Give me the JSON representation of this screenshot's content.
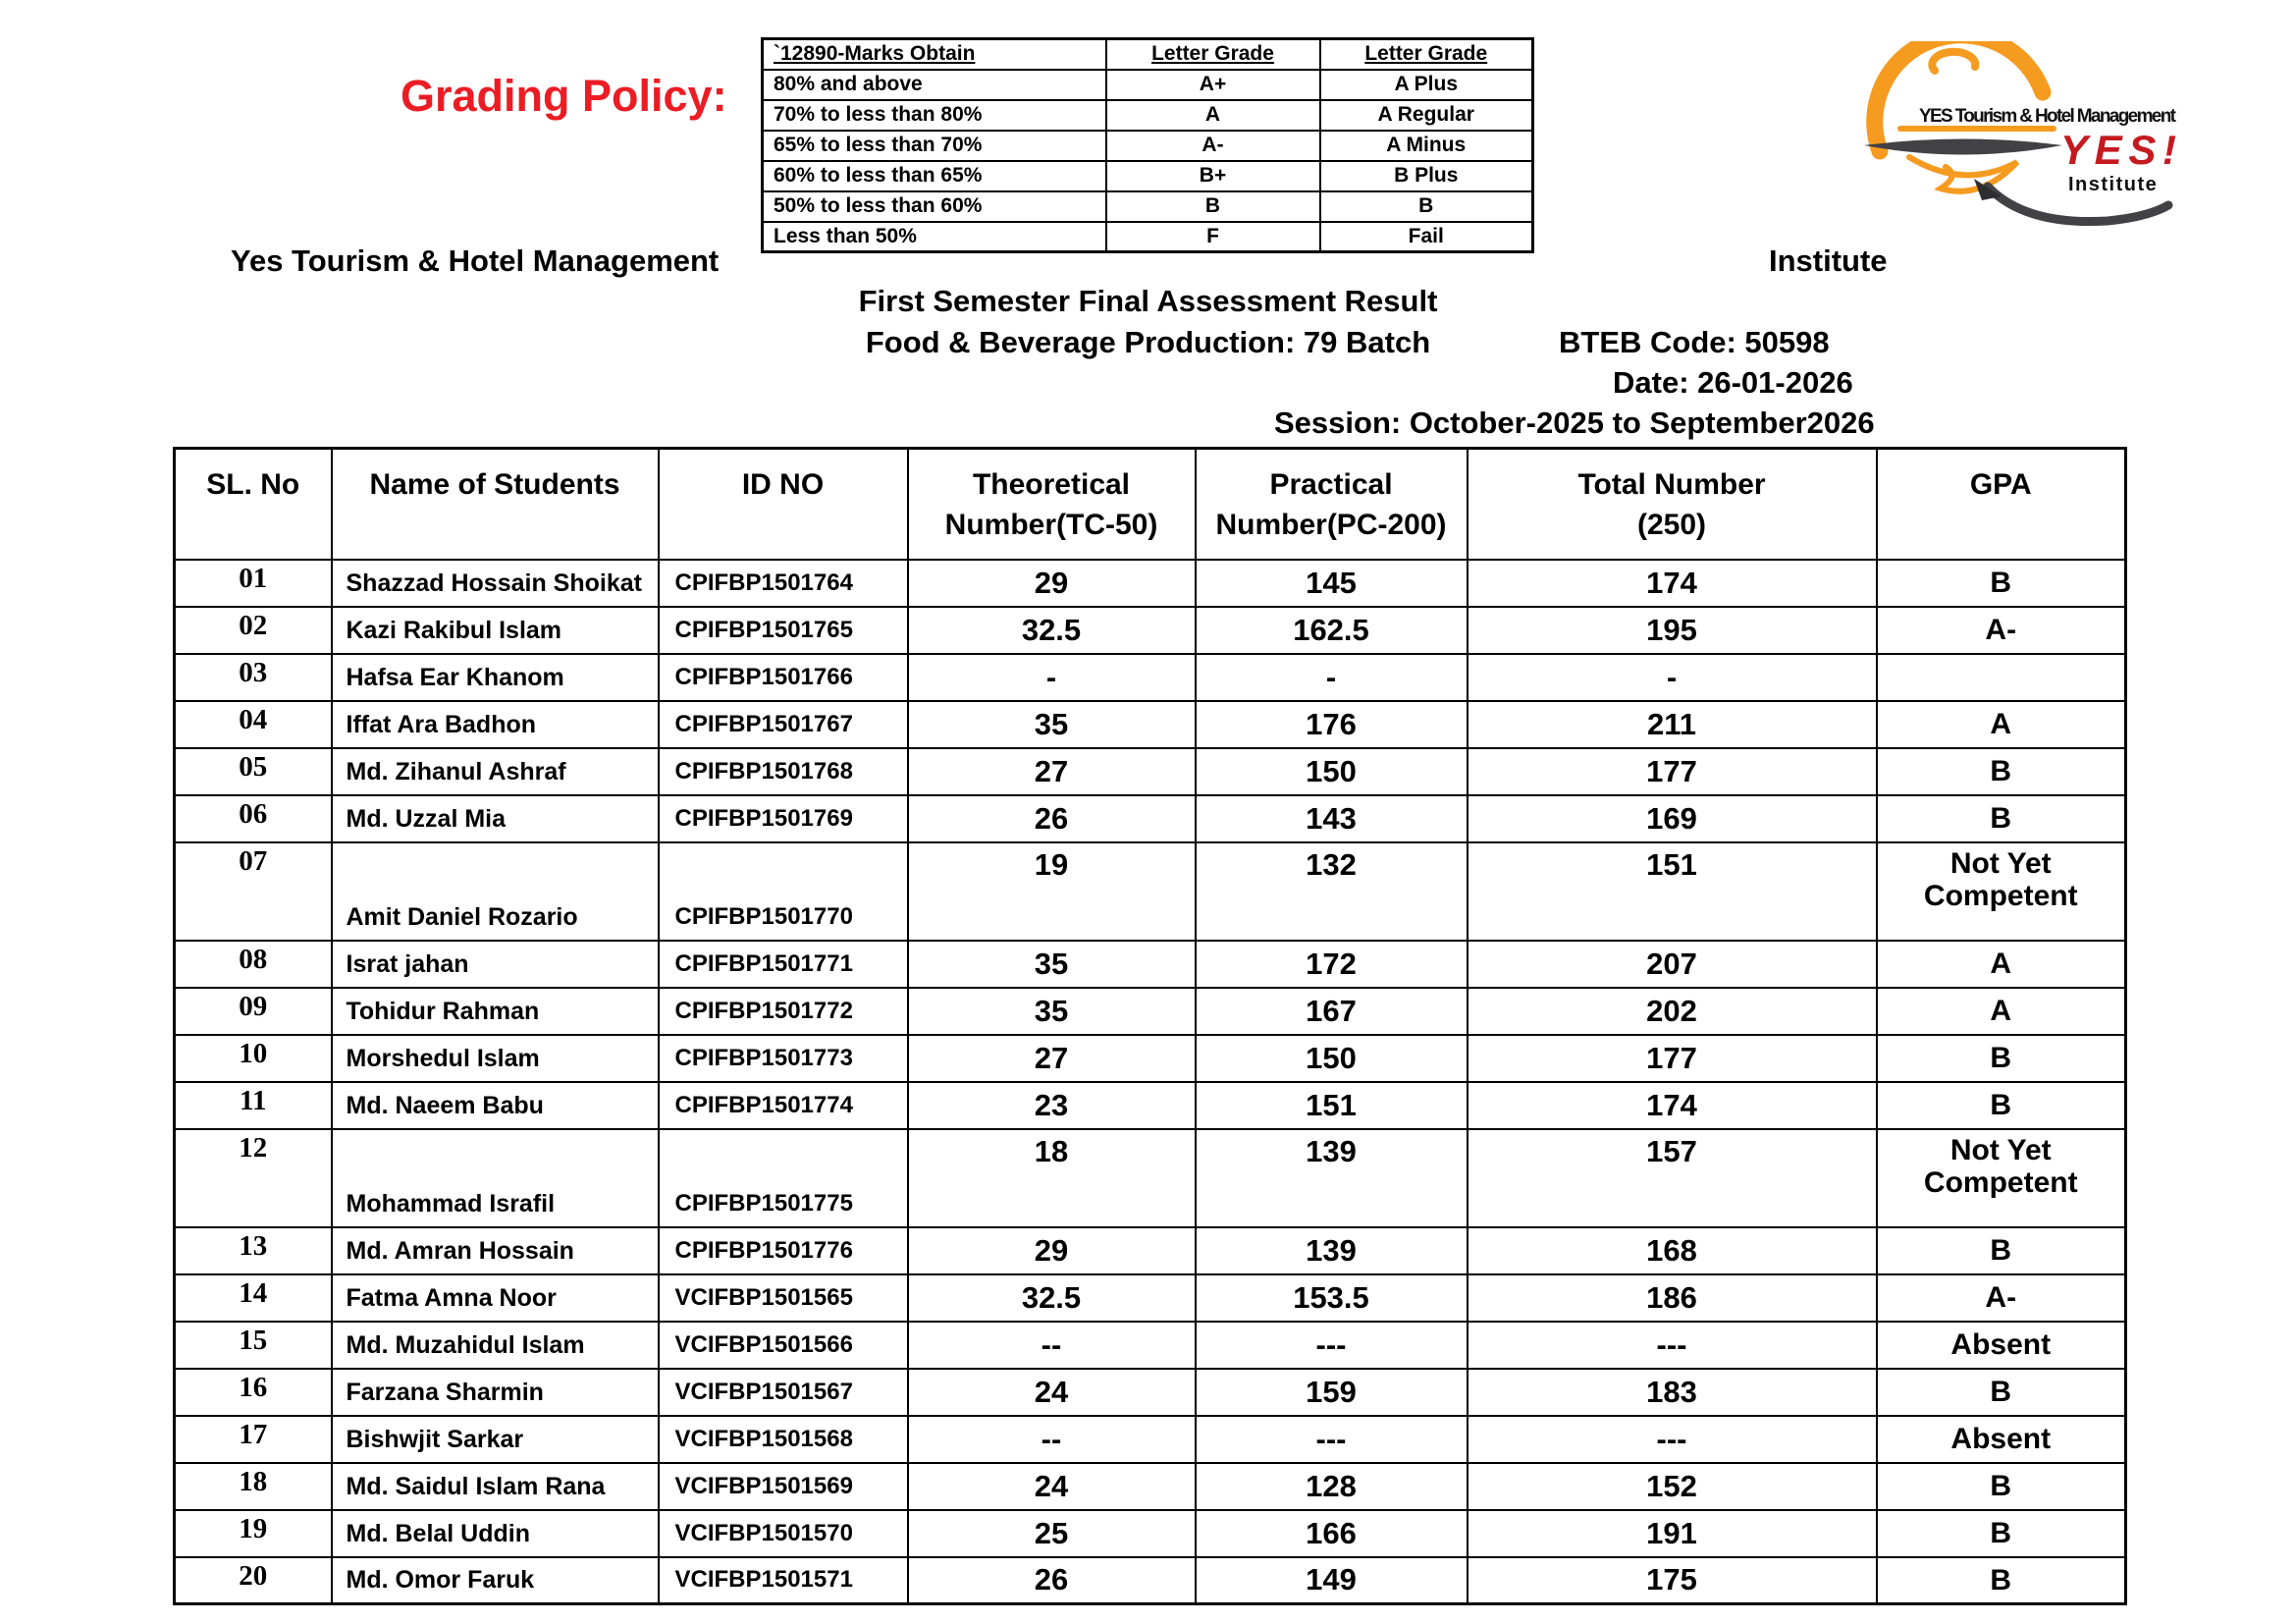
{
  "grading_policy": {
    "label": "Grading Policy:",
    "table": {
      "headers": [
        "`12890-Marks Obtain",
        "Letter Grade",
        "Letter Grade"
      ],
      "rows": [
        [
          "80% and above",
          "A+",
          "A Plus"
        ],
        [
          "70% to less than 80%",
          "A",
          "A Regular"
        ],
        [
          "65% to less than 70%",
          "A-",
          "A Minus"
        ],
        [
          "60% to less than 65%",
          "B+",
          "B Plus"
        ],
        [
          "50% to less than 60%",
          "B",
          "B"
        ],
        [
          "Less than 50%",
          "F",
          "Fail"
        ]
      ]
    }
  },
  "logo": {
    "brand_line": "YES Tourism & Hotel Management",
    "brand_word": "YES!",
    "brand_sub": "Institute",
    "colors": {
      "orange": "#F59B20",
      "red": "#C41A20",
      "dark": "#424246"
    }
  },
  "header": {
    "org_left": "Yes Tourism & Hotel Management",
    "org_right": "Institute",
    "title_line1": "First Semester Final Assessment Result",
    "title_line2": "Food & Beverage Production: 79 Batch",
    "bteb_code": "BTEB Code: 50598",
    "date": "Date: 26-01-2026",
    "session": "Session: October-2025 to September2026"
  },
  "results_table": {
    "headers": [
      "SL. No",
      "Name of Students",
      "ID NO",
      "Theoretical\nNumber(TC-50)",
      "Practical\nNumber(PC-200)",
      "Total Number\n(250)",
      "GPA"
    ],
    "rows": [
      {
        "sl": "01",
        "name": "Shazzad Hossain Shoikat",
        "id": "CPIFBP1501764",
        "theoretical": "29",
        "practical": "145",
        "total": "174",
        "gpa": "B",
        "tall": false
      },
      {
        "sl": "02",
        "name": "Kazi Rakibul Islam",
        "id": "CPIFBP1501765",
        "theoretical": "32.5",
        "practical": "162.5",
        "total": "195",
        "gpa": "A-",
        "tall": false
      },
      {
        "sl": "03",
        "name": "Hafsa Ear Khanom",
        "id": "CPIFBP1501766",
        "theoretical": "-",
        "practical": "-",
        "total": "-",
        "gpa": "",
        "tall": false
      },
      {
        "sl": "04",
        "name": "Iffat Ara Badhon",
        "id": "CPIFBP1501767",
        "theoretical": "35",
        "practical": "176",
        "total": "211",
        "gpa": "A",
        "tall": false
      },
      {
        "sl": "05",
        "name": "Md. Zihanul Ashraf",
        "id": "CPIFBP1501768",
        "theoretical": "27",
        "practical": "150",
        "total": "177",
        "gpa": "B",
        "tall": false
      },
      {
        "sl": "06",
        "name": "Md. Uzzal Mia",
        "id": "CPIFBP1501769",
        "theoretical": "26",
        "practical": "143",
        "total": "169",
        "gpa": "B",
        "tall": false
      },
      {
        "sl": "07",
        "name": "Amit Daniel Rozario",
        "id": "CPIFBP1501770",
        "theoretical": "19",
        "practical": "132",
        "total": "151",
        "gpa": "Not Yet Competent",
        "tall": true
      },
      {
        "sl": "08",
        "name": "Israt jahan",
        "id": "CPIFBP1501771",
        "theoretical": "35",
        "practical": "172",
        "total": "207",
        "gpa": "A",
        "tall": false
      },
      {
        "sl": "09",
        "name": "Tohidur Rahman",
        "id": "CPIFBP1501772",
        "theoretical": "35",
        "practical": "167",
        "total": "202",
        "gpa": "A",
        "tall": false
      },
      {
        "sl": "10",
        "name": "Morshedul Islam",
        "id": "CPIFBP1501773",
        "theoretical": "27",
        "practical": "150",
        "total": "177",
        "gpa": "B",
        "tall": false
      },
      {
        "sl": "11",
        "name": "Md. Naeem Babu",
        "id": "CPIFBP1501774",
        "theoretical": "23",
        "practical": "151",
        "total": "174",
        "gpa": "B",
        "tall": false
      },
      {
        "sl": "12",
        "name": "Mohammad Israfil",
        "id": "CPIFBP1501775",
        "theoretical": "18",
        "practical": "139",
        "total": "157",
        "gpa": "Not Yet Competent",
        "tall": true
      },
      {
        "sl": "13",
        "name": "Md. Amran Hossain",
        "id": "CPIFBP1501776",
        "theoretical": "29",
        "practical": "139",
        "total": "168",
        "gpa": "B",
        "tall": false
      },
      {
        "sl": "14",
        "name": "Fatma Amna Noor",
        "id": "VCIFBP1501565",
        "theoretical": "32.5",
        "practical": "153.5",
        "total": "186",
        "gpa": "A-",
        "tall": false
      },
      {
        "sl": "15",
        "name": "Md. Muzahidul Islam",
        "id": "VCIFBP1501566",
        "theoretical": "--",
        "practical": "---",
        "total": "---",
        "gpa": "Absent",
        "tall": false
      },
      {
        "sl": "16",
        "name": "Farzana Sharmin",
        "id": "VCIFBP1501567",
        "theoretical": "24",
        "practical": "159",
        "total": "183",
        "gpa": "B",
        "tall": false
      },
      {
        "sl": "17",
        "name": "Bishwjit Sarkar",
        "id": "VCIFBP1501568",
        "theoretical": "--",
        "practical": "---",
        "total": "---",
        "gpa": "Absent",
        "tall": false
      },
      {
        "sl": "18",
        "name": "Md. Saidul Islam Rana",
        "id": "VCIFBP1501569",
        "theoretical": "24",
        "practical": "128",
        "total": "152",
        "gpa": "B",
        "tall": false
      },
      {
        "sl": "19",
        "name": "Md. Belal Uddin",
        "id": "VCIFBP1501570",
        "theoretical": "25",
        "practical": "166",
        "total": "191",
        "gpa": "B",
        "tall": false
      },
      {
        "sl": "20",
        "name": "Md. Omor Faruk",
        "id": "VCIFBP1501571",
        "theoretical": "26",
        "practical": "149",
        "total": "175",
        "gpa": "B",
        "tall": false
      }
    ]
  }
}
